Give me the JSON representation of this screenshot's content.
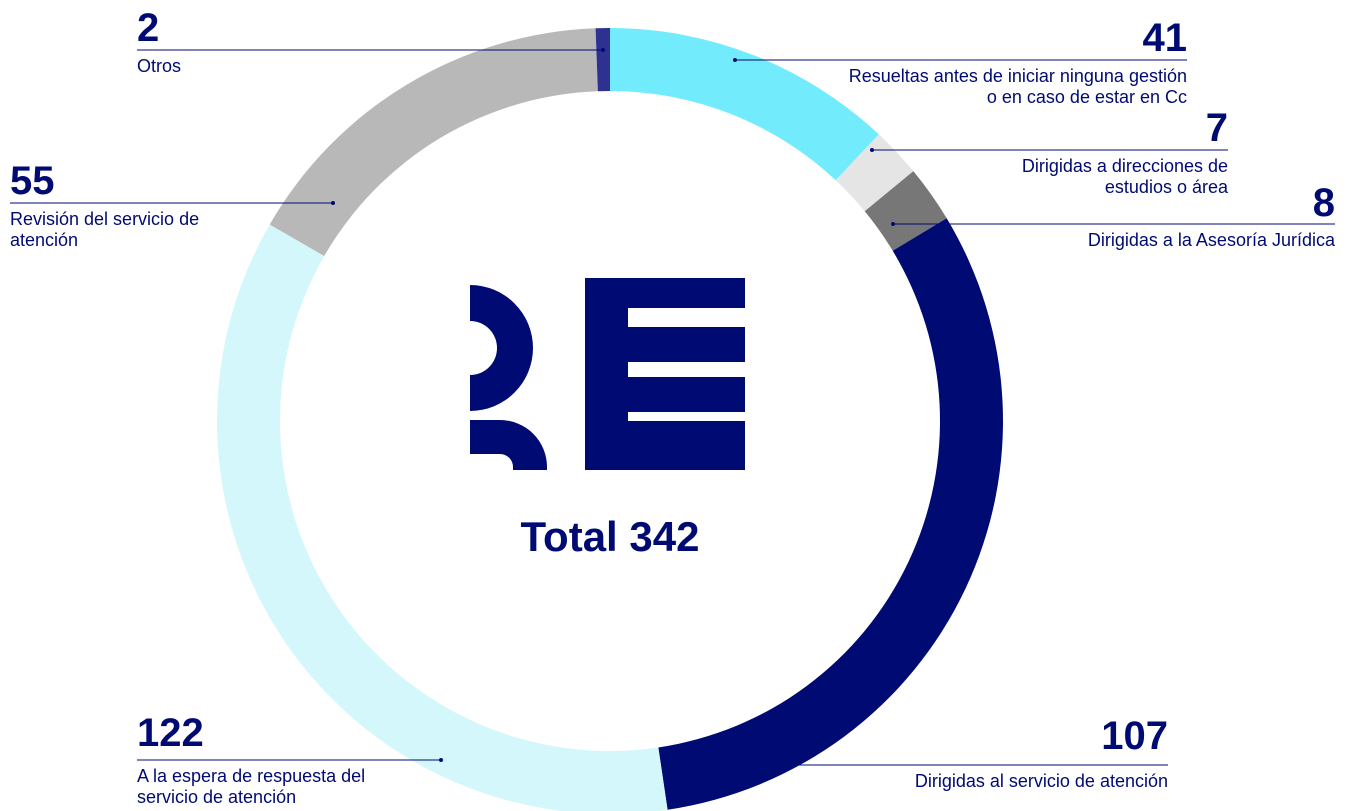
{
  "chart_data": {
    "type": "donut",
    "center_label": "Total 342",
    "categories": [
      "Resueltas antes de iniciar ninguna gestión o en caso de estar en Cc",
      "Dirigidas a direcciones de estudios o área",
      "Dirigidas a la Asesoría Jurídica",
      "Dirigidas al servicio de atención",
      "A la espera de respuesta del servicio de atención",
      "Revisión del servicio de atención",
      "Otros"
    ],
    "values": [
      41,
      7,
      8,
      107,
      122,
      55,
      2
    ],
    "colors": [
      "#72ecfc",
      "#e5e5e5",
      "#777777",
      "#000a73",
      "#d4f7fc",
      "#b8b8b8",
      "#2e3192"
    ]
  }
}
